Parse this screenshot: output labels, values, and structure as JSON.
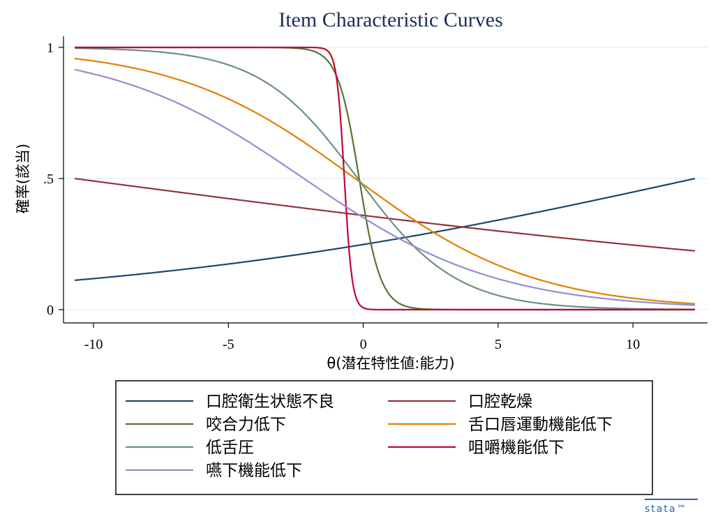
{
  "chart_data": {
    "type": "line",
    "title": "Item Characteristic Curves",
    "xlabel": "θ(潜在特性値:能力)",
    "ylabel": "確率(該当)",
    "xlim": [
      -10.7,
      12.3
    ],
    "ylim": [
      0,
      1
    ],
    "xticks": [
      -10,
      -5,
      0,
      5,
      10
    ],
    "xtick_labels": [
      "-10",
      "-5",
      "0",
      "5",
      "10"
    ],
    "yticks": [
      0,
      0.5,
      1
    ],
    "ytick_labels": [
      "0",
      ".5",
      "1"
    ],
    "grid": "horizontal",
    "legend_position": "bottom",
    "series": [
      {
        "name": "口腔衛生状態不良",
        "color": "#1a476f",
        "a": 0.09,
        "b": 12.3,
        "x": [
          -10.7,
          -5,
          0,
          5,
          10,
          12.3
        ],
        "y": [
          0.14,
          0.2,
          0.27,
          0.36,
          0.45,
          0.5
        ]
      },
      {
        "name": "口腔乾燥",
        "color": "#90353b",
        "a": -0.054,
        "b": -10.7,
        "x": [
          -10.7,
          -5,
          0,
          5,
          10,
          12.3
        ],
        "y": [
          0.5,
          0.43,
          0.36,
          0.3,
          0.25,
          0.23
        ]
      },
      {
        "name": "咬合力低下",
        "color": "#55752f",
        "a": -2.5,
        "b": -0.15,
        "x": [
          -10.7,
          -2,
          -1,
          -0.5,
          0,
          1,
          2.5,
          12.3
        ],
        "y": [
          1.0,
          0.99,
          0.84,
          0.67,
          0.41,
          0.06,
          0.002,
          0.0
        ]
      },
      {
        "name": "舌口唇運動機能低下",
        "color": "#e37e00",
        "a": -0.3,
        "b": -0.3,
        "x": [
          -10.7,
          -5,
          0,
          5,
          10,
          12.3
        ],
        "y": [
          0.88,
          0.72,
          0.43,
          0.18,
          0.07,
          0.04
        ]
      },
      {
        "name": "低舌圧",
        "color": "#6e8e84",
        "a": -0.55,
        "b": -0.2,
        "x": [
          -10.7,
          -5,
          0,
          5,
          10,
          12.3
        ],
        "y": [
          1.0,
          0.94,
          0.47,
          0.06,
          0.006,
          0.003
        ]
      },
      {
        "name": "咀嚼機能低下",
        "color": "#c10534",
        "a": -7.0,
        "b": -0.7,
        "x": [
          -10.7,
          -1.2,
          -0.7,
          -0.2,
          0.5,
          12.3
        ],
        "y": [
          1.0,
          0.97,
          0.5,
          0.03,
          0.0,
          0.0
        ]
      },
      {
        "name": "嚥下機能低下",
        "color": "#938dd2",
        "a": -0.28,
        "b": -2.2,
        "x": [
          -10.7,
          -5,
          0,
          5,
          10,
          12.3
        ],
        "y": [
          0.83,
          0.63,
          0.3,
          0.11,
          0.03,
          0.02
        ]
      }
    ]
  },
  "branding": {
    "logo": "stata™"
  }
}
